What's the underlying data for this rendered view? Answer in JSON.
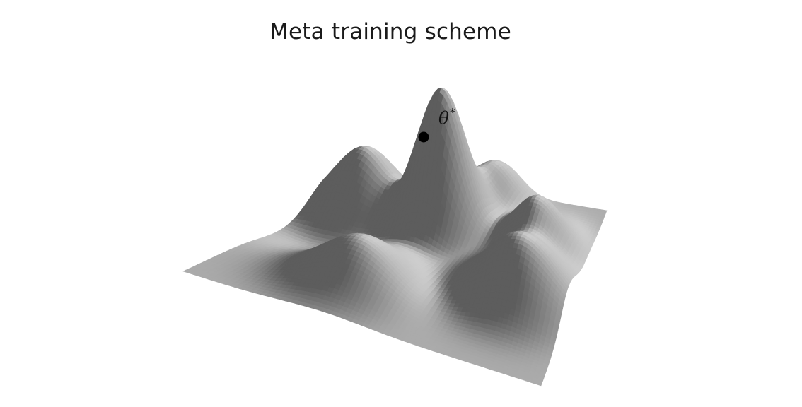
{
  "figure": {
    "title": "Meta training scheme",
    "optimum_label": "θ",
    "optimum_label_superscript": "*"
  },
  "colors": {
    "background": "#ffffff",
    "surface_base": "#8a8a8a",
    "surface_shadow": "#3a3a3a",
    "surface_highlight": "#c8c8c8",
    "optimum_point": "#000000"
  }
}
